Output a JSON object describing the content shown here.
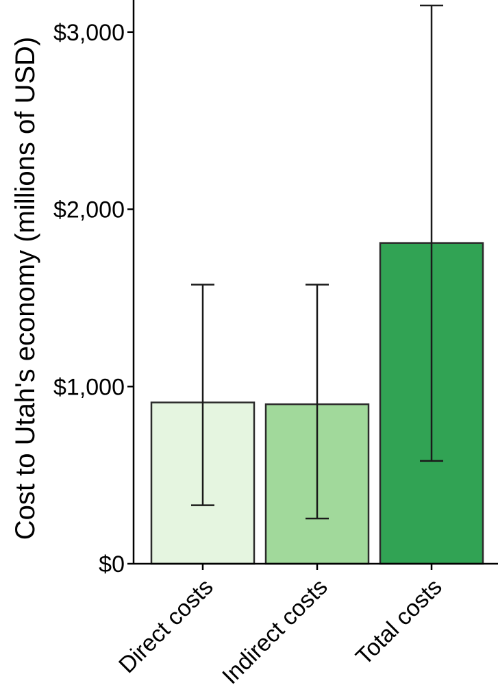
{
  "chart_data": {
    "type": "bar",
    "title": "",
    "xlabel": "",
    "ylabel": "Cost to Utah's economy (millions of USD)",
    "categories": [
      "Direct costs",
      "Indirect costs",
      "Total costs"
    ],
    "values": [
      910,
      900,
      1810
    ],
    "error_low": [
      330,
      255,
      580
    ],
    "error_high": [
      1575,
      1575,
      3150
    ],
    "ylim": [
      0,
      3150
    ],
    "yticks": [
      0,
      1000,
      2000,
      3000
    ],
    "ytick_labels": [
      "$0",
      "$1,000",
      "$2,000",
      "$3,000"
    ],
    "grid": false,
    "legend": "none",
    "colors": [
      "#e5f5e0",
      "#a1d99b",
      "#31a354"
    ],
    "bar_edge_color": "#2b2b2b",
    "error_bar_color": "#1a1a1a"
  }
}
